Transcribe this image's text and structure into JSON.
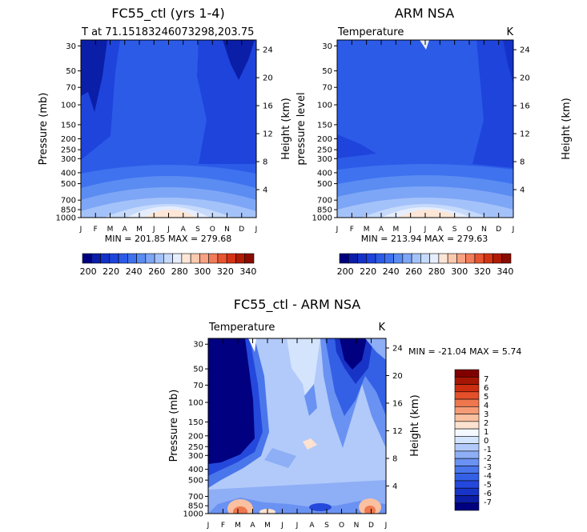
{
  "colors": {
    "temp_scale": [
      "#000080",
      "#0a1ea8",
      "#1532c8",
      "#1e44dc",
      "#2c5be8",
      "#3e72ef",
      "#5a8cf2",
      "#7ea6f6",
      "#a4c2fa",
      "#c6dafc",
      "#e6eefe",
      "#fde6d6",
      "#fbc9ae",
      "#f8a283",
      "#f27b59",
      "#e8542f",
      "#d43414",
      "#b01b06",
      "#8a0b00"
    ],
    "diff_scale": [
      "#000080",
      "#0c1ea6",
      "#1834c6",
      "#2448dc",
      "#3460e6",
      "#4a76ec",
      "#6a92f2",
      "#8eaef6",
      "#b2cafa",
      "#d4e4fc",
      "#f4f8ff",
      "#fde2d0",
      "#fac0a0",
      "#f59c76",
      "#ee774e",
      "#e4502a",
      "#cc2e10",
      "#a61604",
      "#800000"
    ]
  },
  "panels": [
    {
      "title": "FC55_ctl (yrs 1-4)",
      "subtitle": "T at 71.15183246073298,203.75",
      "ylabel_left": "Pressure (mb)",
      "ylabel_right": "Height (km)",
      "minmax": "MIN = 201.85 MAX = 279.68"
    },
    {
      "title": "ARM NSA",
      "subtitle": "Temperature",
      "units": "K",
      "ylabel_left": "pressure level",
      "ylabel_right": "Height (km)",
      "minmax": "MIN = 213.94 MAX = 279.63"
    },
    {
      "title": "FC55_ctl - ARM NSA",
      "subtitle": "Temperature",
      "units": "K",
      "ylabel_left": "Pressure (mb)",
      "ylabel_right": "Height (km)",
      "minmax": "MIN = -21.04 MAX =    5.74"
    }
  ],
  "chart_data": [
    {
      "type": "heatmap",
      "title": "FC55_ctl (yrs 1-4)",
      "x": [
        "J",
        "F",
        "M",
        "A",
        "M",
        "J",
        "J",
        "A",
        "S",
        "O",
        "N",
        "D",
        "J"
      ],
      "pressure_ticks": [
        30,
        50,
        70,
        100,
        150,
        200,
        250,
        300,
        400,
        500,
        700,
        850,
        1000
      ],
      "height_ticks": [
        4,
        8,
        12,
        16,
        20,
        24
      ],
      "min": 201.85,
      "max": 279.68,
      "colorbar_ticks": [
        200,
        220,
        240,
        260,
        280,
        300,
        320,
        340
      ],
      "colorbar_range": [
        195,
        345
      ]
    },
    {
      "type": "heatmap",
      "title": "ARM NSA",
      "x": [
        "J",
        "F",
        "M",
        "A",
        "M",
        "J",
        "J",
        "A",
        "S",
        "O",
        "N",
        "D",
        "J"
      ],
      "pressure_ticks": [
        30,
        50,
        70,
        100,
        150,
        200,
        250,
        300,
        400,
        500,
        700,
        850,
        1000
      ],
      "height_ticks": [
        4,
        8,
        12,
        16,
        20,
        24
      ],
      "min": 213.94,
      "max": 279.63,
      "colorbar_ticks": [
        200,
        220,
        240,
        260,
        280,
        300,
        320,
        340
      ],
      "colorbar_range": [
        195,
        345
      ]
    },
    {
      "type": "heatmap",
      "title": "FC55_ctl - ARM NSA",
      "x": [
        "J",
        "F",
        "M",
        "A",
        "M",
        "J",
        "J",
        "A",
        "S",
        "O",
        "N",
        "D",
        "J"
      ],
      "pressure_ticks": [
        30,
        50,
        70,
        100,
        150,
        200,
        250,
        300,
        400,
        500,
        700,
        850,
        1000
      ],
      "height_ticks": [
        4,
        8,
        12,
        16,
        20,
        24
      ],
      "min": -21.04,
      "max": 5.74,
      "colorbar_labels": [
        "7",
        "6",
        "5",
        "4",
        "3",
        "2",
        "1",
        "0",
        "-1",
        "-2",
        "-3",
        "-4",
        "-5",
        "-6",
        "-7"
      ]
    }
  ]
}
